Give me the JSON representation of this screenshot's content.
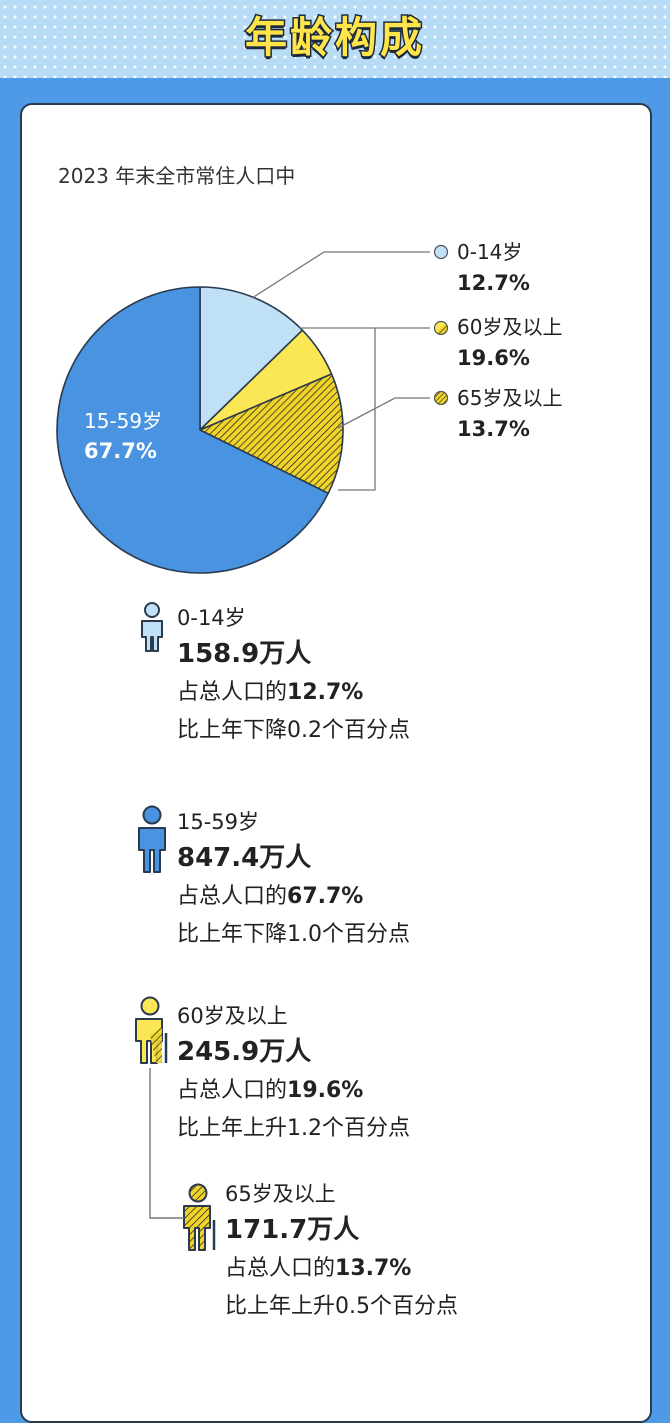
{
  "title": "年龄构成",
  "intro": "2023 年末全市常住人口中",
  "chart_data": {
    "type": "pie",
    "slices": [
      {
        "label": "0-14岁",
        "value": 12.7,
        "display": "12.7%",
        "color": "#bfe0f5"
      },
      {
        "label": "60岁及以上",
        "value": 19.6,
        "display": "19.6%",
        "color": "#fbe755",
        "note": "60-64 portion plain yellow; 65+ portion hatched"
      },
      {
        "label": "65岁及以上",
        "value": 13.7,
        "display": "13.7%",
        "color": "#f0d428",
        "pattern": "hatched"
      },
      {
        "label": "15-59岁",
        "value": 67.7,
        "display": "67.7%",
        "color": "#4993e0"
      }
    ]
  },
  "legend": [
    {
      "label": "0-14岁",
      "pct": "12.7%"
    },
    {
      "label": "60岁及以上",
      "pct": "19.6%"
    },
    {
      "label": "65岁及以上",
      "pct": "13.7%"
    }
  ],
  "pie_label": {
    "label": "15-59岁",
    "pct": "67.7%"
  },
  "stats": [
    {
      "age": "0-14岁",
      "count": "158.9万人",
      "share_prefix": "占总人口的",
      "share": "12.7%",
      "change": "比上年下降0.2个百分点"
    },
    {
      "age": "15-59岁",
      "count": "847.4万人",
      "share_prefix": "占总人口的",
      "share": "67.7%",
      "change": "比上年下降1.0个百分点"
    },
    {
      "age": "60岁及以上",
      "count": "245.9万人",
      "share_prefix": "占总人口的",
      "share": "19.6%",
      "change": "比上年上升1.2个百分点"
    },
    {
      "age": "65岁及以上",
      "count": "171.7万人",
      "share_prefix": "占总人口的",
      "share": "13.7%",
      "change": "比上年上升0.5个百分点"
    }
  ],
  "colors": {
    "child": "#bfe0f5",
    "working": "#4993e0",
    "elder": "#fbe755",
    "elder65": "#f0d428",
    "background": "#4f9ae6",
    "outline": "#2a3a4f"
  }
}
